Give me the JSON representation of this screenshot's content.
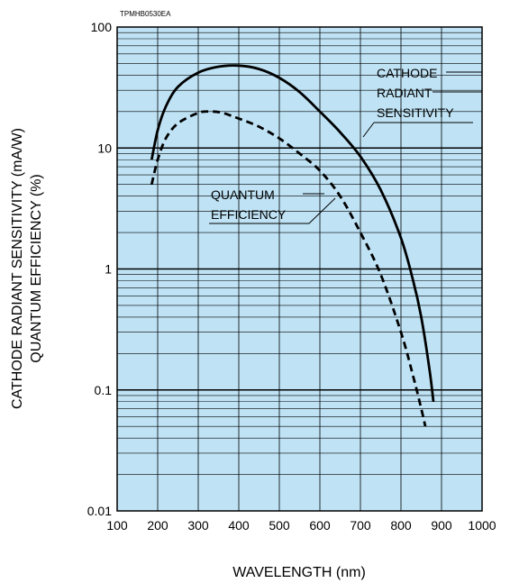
{
  "chart_data": {
    "type": "line",
    "figure_code": "TPMHB0530EA",
    "xlabel": "WAVELENGTH (nm)",
    "ylabel_lines": [
      "CATHODE RADIANT SENSITIVITY (mA/W)",
      "QUANTUM EFFICIENCY (%)"
    ],
    "xlim": [
      100,
      1000
    ],
    "ylim": [
      0.01,
      100
    ],
    "yscale": "log",
    "grid": true,
    "x_ticks": [
      "100",
      "200",
      "300",
      "400",
      "500",
      "600",
      "700",
      "800",
      "900",
      "1000"
    ],
    "y_ticks": [
      "0.01",
      "0.1",
      "1",
      "10",
      "100"
    ],
    "colors": {
      "plot_background": "#bfe3f5",
      "grid": "#000000",
      "line": "#000000"
    },
    "series": [
      {
        "name": "CATHODE RADIANT SENSITIVITY",
        "style": "solid",
        "label_lines": [
          "CATHODE",
          "RADIANT",
          "SENSITIVITY"
        ],
        "points": [
          [
            185,
            8
          ],
          [
            200,
            14
          ],
          [
            220,
            22
          ],
          [
            250,
            32
          ],
          [
            300,
            42
          ],
          [
            350,
            47
          ],
          [
            400,
            48
          ],
          [
            450,
            45
          ],
          [
            500,
            38
          ],
          [
            550,
            29
          ],
          [
            600,
            20
          ],
          [
            650,
            13.5
          ],
          [
            700,
            8.5
          ],
          [
            750,
            4.5
          ],
          [
            800,
            1.8
          ],
          [
            830,
            0.8
          ],
          [
            850,
            0.4
          ],
          [
            870,
            0.15
          ],
          [
            880,
            0.08
          ]
        ]
      },
      {
        "name": "QUANTUM EFFICIENCY",
        "style": "dashed",
        "label_lines": [
          "QUANTUM",
          "EFFICIENCY"
        ],
        "points": [
          [
            185,
            5
          ],
          [
            200,
            8
          ],
          [
            220,
            12
          ],
          [
            250,
            16
          ],
          [
            300,
            19.5
          ],
          [
            330,
            20
          ],
          [
            360,
            19.5
          ],
          [
            400,
            17.5
          ],
          [
            450,
            15
          ],
          [
            500,
            12
          ],
          [
            550,
            9
          ],
          [
            600,
            6.5
          ],
          [
            650,
            4
          ],
          [
            700,
            2
          ],
          [
            750,
            0.9
          ],
          [
            800,
            0.3
          ],
          [
            830,
            0.13
          ],
          [
            850,
            0.07
          ],
          [
            860,
            0.05
          ]
        ]
      }
    ]
  }
}
